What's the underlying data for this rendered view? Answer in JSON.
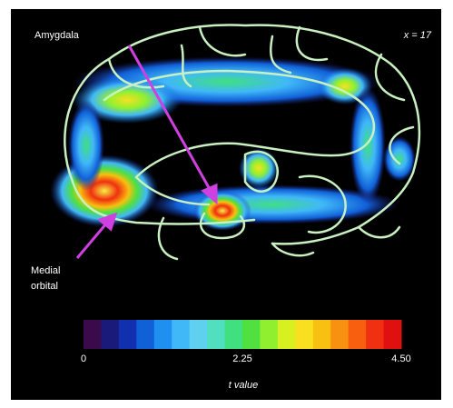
{
  "annotations": {
    "region_a": "Amygdala",
    "slice": "x = 17",
    "region_b_line1": "Medial",
    "region_b_line2": "orbital"
  },
  "colorbar": {
    "label": "t value",
    "lim": [
      0,
      4.5
    ],
    "ticks": [
      0,
      2.25,
      {
        "value": 4.5,
        "label": "4.50"
      }
    ],
    "colors": [
      "#3a0a4a",
      "#1a1a7a",
      "#1030b0",
      "#1060d8",
      "#2090f0",
      "#40b8f8",
      "#60d0f0",
      "#50e0c0",
      "#40e080",
      "#50e040",
      "#90f030",
      "#d8f020",
      "#f8e020",
      "#f8c010",
      "#f89010",
      "#f86010",
      "#f03010",
      "#e01010"
    ]
  }
}
